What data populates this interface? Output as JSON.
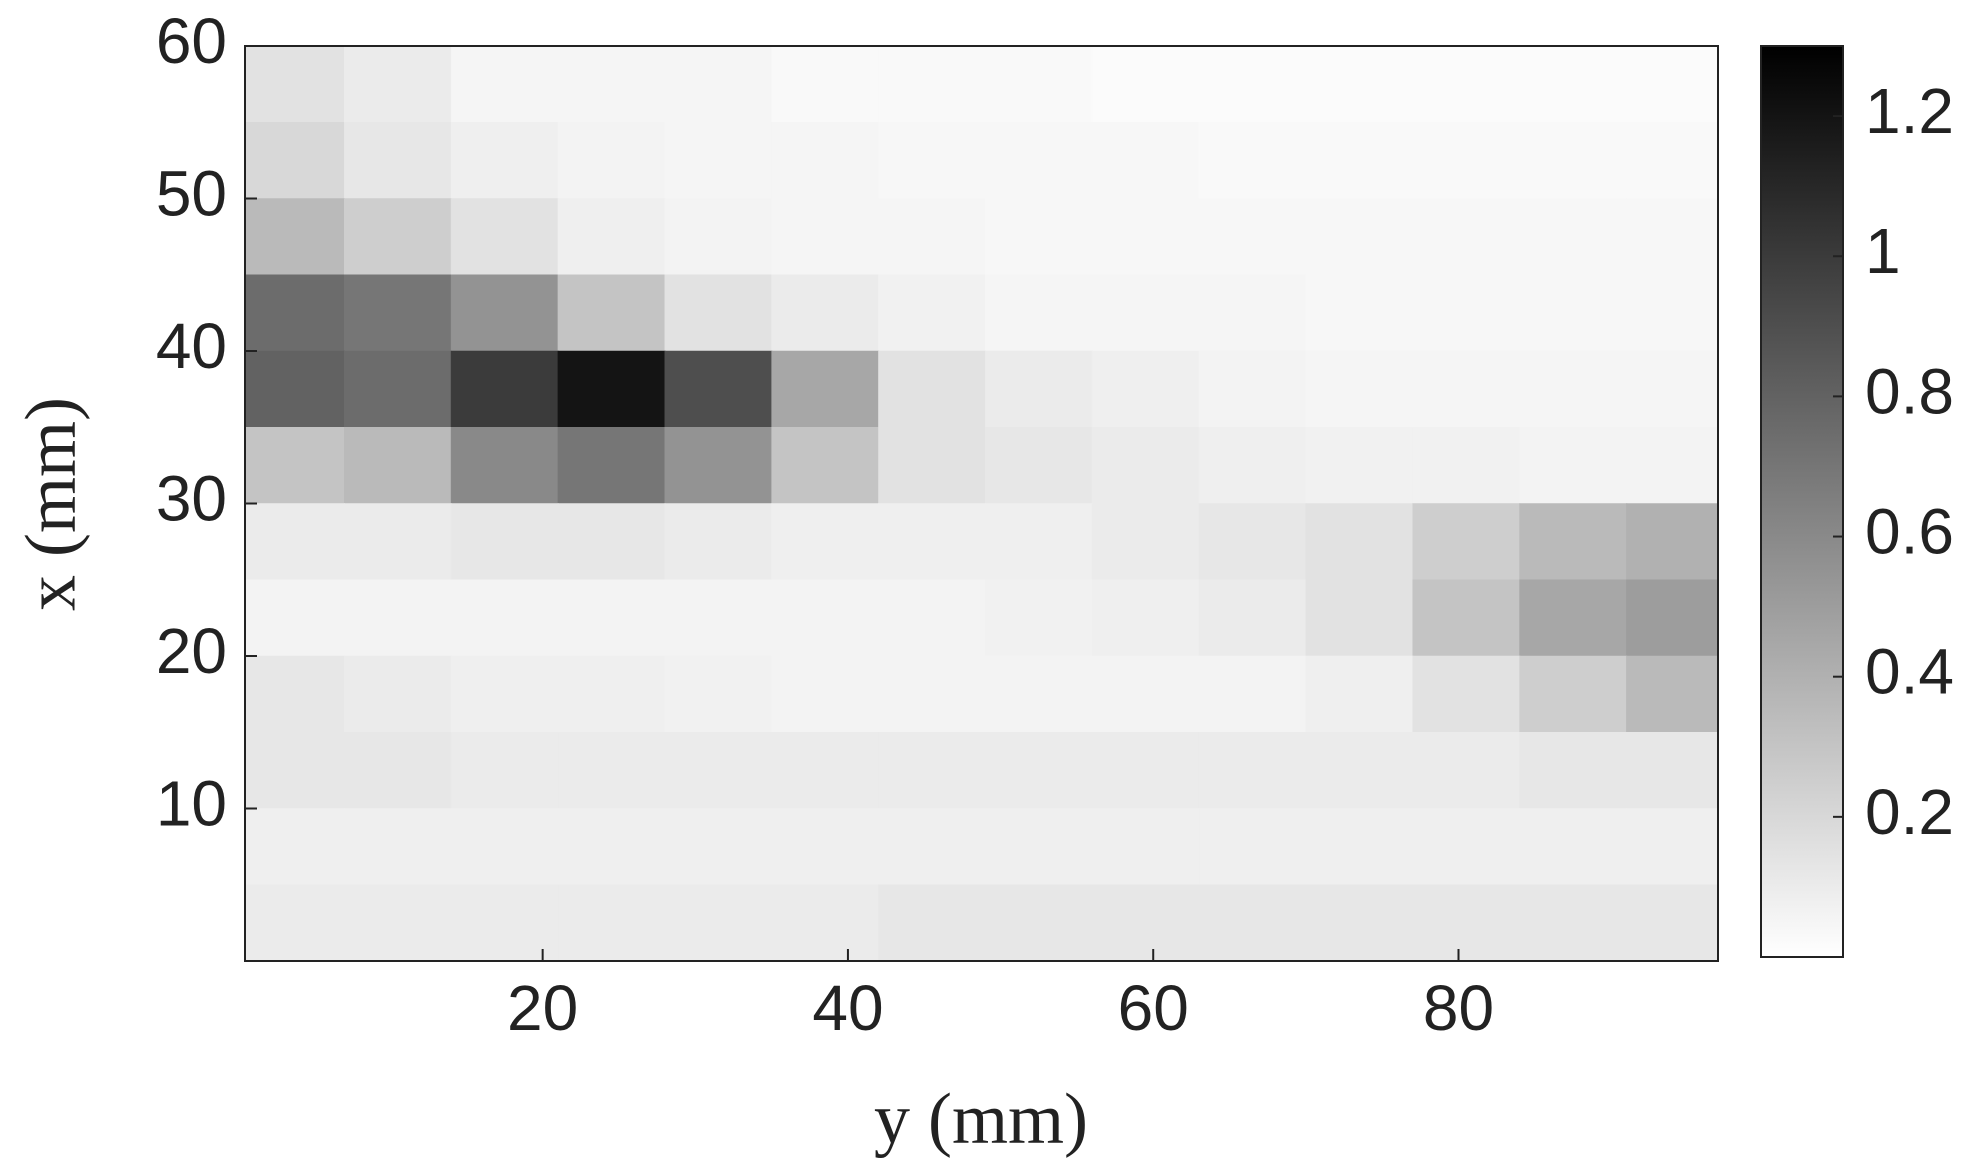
{
  "chart_data": {
    "type": "heatmap",
    "xlabel": "y (mm)",
    "ylabel": "x (mm)",
    "x": [
      3.5,
      10.5,
      17.5,
      24.5,
      31.5,
      38.5,
      45.5,
      52.5,
      59.5,
      66.5,
      73.5,
      80.5,
      87.5,
      94.5
    ],
    "y": [
      57.5,
      52.5,
      47.5,
      42.5,
      37.5,
      32.5,
      27.5,
      22.5,
      17.5,
      12.5,
      7.5,
      2.5
    ],
    "z": [
      [
        0.15,
        0.1,
        0.05,
        0.05,
        0.05,
        0.03,
        0.03,
        0.03,
        0.02,
        0.02,
        0.02,
        0.02,
        0.02,
        0.02
      ],
      [
        0.2,
        0.12,
        0.08,
        0.06,
        0.05,
        0.05,
        0.04,
        0.04,
        0.04,
        0.03,
        0.03,
        0.03,
        0.03,
        0.03
      ],
      [
        0.35,
        0.25,
        0.15,
        0.08,
        0.06,
        0.05,
        0.05,
        0.04,
        0.04,
        0.04,
        0.04,
        0.04,
        0.04,
        0.04
      ],
      [
        0.75,
        0.7,
        0.55,
        0.3,
        0.15,
        0.1,
        0.07,
        0.05,
        0.05,
        0.05,
        0.04,
        0.04,
        0.04,
        0.04
      ],
      [
        0.8,
        0.75,
        1.0,
        1.2,
        0.9,
        0.45,
        0.15,
        0.1,
        0.08,
        0.06,
        0.05,
        0.05,
        0.05,
        0.05
      ],
      [
        0.3,
        0.35,
        0.6,
        0.7,
        0.55,
        0.3,
        0.15,
        0.12,
        0.1,
        0.08,
        0.07,
        0.07,
        0.06,
        0.06
      ],
      [
        0.1,
        0.1,
        0.12,
        0.12,
        0.1,
        0.08,
        0.08,
        0.08,
        0.1,
        0.12,
        0.15,
        0.25,
        0.35,
        0.4
      ],
      [
        0.06,
        0.06,
        0.06,
        0.06,
        0.06,
        0.06,
        0.06,
        0.07,
        0.08,
        0.1,
        0.15,
        0.3,
        0.45,
        0.5
      ],
      [
        0.12,
        0.1,
        0.08,
        0.08,
        0.07,
        0.06,
        0.06,
        0.06,
        0.06,
        0.06,
        0.08,
        0.15,
        0.25,
        0.35
      ],
      [
        0.12,
        0.12,
        0.1,
        0.1,
        0.1,
        0.1,
        0.1,
        0.1,
        0.1,
        0.1,
        0.1,
        0.1,
        0.12,
        0.12
      ],
      [
        0.08,
        0.08,
        0.08,
        0.08,
        0.08,
        0.08,
        0.08,
        0.08,
        0.08,
        0.08,
        0.08,
        0.08,
        0.08,
        0.08
      ],
      [
        0.1,
        0.1,
        0.1,
        0.1,
        0.1,
        0.1,
        0.12,
        0.12,
        0.12,
        0.12,
        0.12,
        0.12,
        0.12,
        0.12
      ]
    ],
    "colormap": "gray_r",
    "xlim": [
      0.5,
      97
    ],
    "ylim": [
      0,
      60
    ],
    "xticks": [
      20,
      40,
      60,
      80
    ],
    "yticks": [
      10,
      20,
      30,
      40,
      50,
      60
    ],
    "clim": [
      0,
      1.3
    ],
    "cticks": [
      0.2,
      0.4,
      0.6,
      0.8,
      1,
      1.2
    ]
  }
}
